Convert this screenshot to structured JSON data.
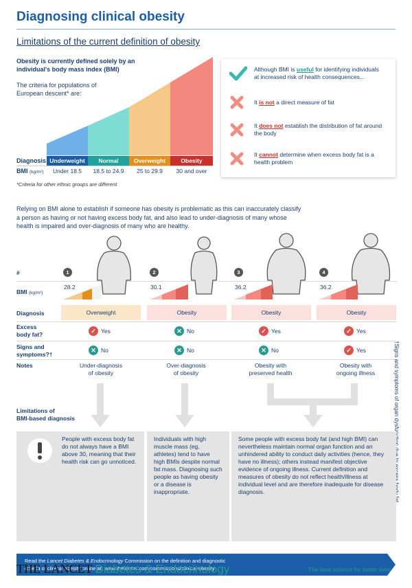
{
  "title": "Diagnosing clinical obesity",
  "subtitle": "Limitations of the current definition of obesity",
  "intro": {
    "definition": "Obesity is currently defined solely by an individual's body mass index (BMI)",
    "criteria": "The criteria for populations of European descent* are:"
  },
  "bmi_chart": {
    "diagnosis_label": "Diagnosis",
    "bmi_label": "BMI",
    "bmi_unit": "(kg/m²)",
    "categories": [
      {
        "name": "Underweight",
        "range": "Under 18.5",
        "color": "#1a5ea8",
        "fill": "#6fb0e8"
      },
      {
        "name": "Normal",
        "range": "18.5 to 24.9",
        "color": "#1fa39a",
        "fill": "#7fdcd3"
      },
      {
        "name": "Overweight",
        "range": "25 to 29.9",
        "color": "#e3901a",
        "fill": "#f6c98a"
      },
      {
        "name": "Obesity",
        "range": "30 and over",
        "color": "#c9302c",
        "fill": "#f4877e"
      }
    ],
    "footnote": "*Criteria for other ethnic groups are different"
  },
  "checklist": {
    "item1_pre": "Although BMI is ",
    "item1_em": "useful",
    "item1_post": " for identifying individuals at increased risk of health consequences...",
    "item2_pre": "It ",
    "item2_em": "is not",
    "item2_post": " a direct measure of fat",
    "item3_pre": "It ",
    "item3_em": "does not",
    "item3_post": " establish the distribution of fat around the body",
    "item4_pre": "It ",
    "item4_em": "cannot",
    "item4_post": " determine when excess body fat is a health problem"
  },
  "paragraph": "Relying on BMI alone to establish if someone has obesity is problematic as this can inaccurately classify a person as having or not having excess body fat, and also lead to under-diagnosis of many whose health is impaired and over-diagnosis of many who are healthy.",
  "table": {
    "labels": {
      "num": "#",
      "bmi": "BMI",
      "bmi_unit": "(kg/m²)",
      "diagnosis": "Diagnosis",
      "excess1": "Excess",
      "excess2": "body fat?",
      "signs1": "Signs and",
      "signs2": "symptoms?†",
      "notes": "Notes"
    },
    "cases": [
      {
        "num": "1",
        "bmi": "28.2",
        "diagnosis": "Overweight",
        "excess": "Yes",
        "signs": "No",
        "note1": "Under-diagnosis",
        "note2": "of obesity"
      },
      {
        "num": "2",
        "bmi": "30.1",
        "diagnosis": "Obesity",
        "excess": "No",
        "signs": "No",
        "note1": "Over-diagnosis",
        "note2": "of obesity"
      },
      {
        "num": "3",
        "bmi": "36.2",
        "diagnosis": "Obesity",
        "excess": "Yes",
        "signs": "No",
        "note1": "Obesity with",
        "note2": "preserved health"
      },
      {
        "num": "4",
        "bmi": "36.2",
        "diagnosis": "Obesity",
        "excess": "Yes",
        "signs": "Yes",
        "note1": "Obesity with",
        "note2": "ongoing illness"
      }
    ]
  },
  "sidenote": "†Signs and symptoms of organ dysfunction due to excess body fat",
  "limitations": {
    "label1": "Limitations of",
    "label2": "BMI-based diagnosis",
    "box1": "People with excess body fat do not always have a BMI above 30, meaning that their health risk can go unnoticed.",
    "box2": "Individuals with high muscle mass (eg, athletes) tend to have high BMIs despite normal fat mass. Diagnosing such people as having obesity or a disease is inappropriate.",
    "box3": "Some people with excess body fat (and high BMI) can nevertheless maintain normal organ function and an unhindered ability to conduct daily activities (hence, they have no illness); others instead manifest objective evidence of ongoing illness. Current definition and measures of obesity do not reflect health/illness at individual level and are therefore inadequate for disease diagnosis."
  },
  "banner": {
    "pre": "Read the ",
    "journal": "Lancet Diabetes & Endocrinology",
    "mid": " Commission on the definition and diagnostic",
    "line2": "criteria of clinical obesity online at: www.thelancet.com/commissions/clinical-obesity"
  },
  "footer": {
    "brand": "THE LANCET",
    "journal": "Diabetes & Endocrinology",
    "tagline": "The best science for better lives"
  }
}
